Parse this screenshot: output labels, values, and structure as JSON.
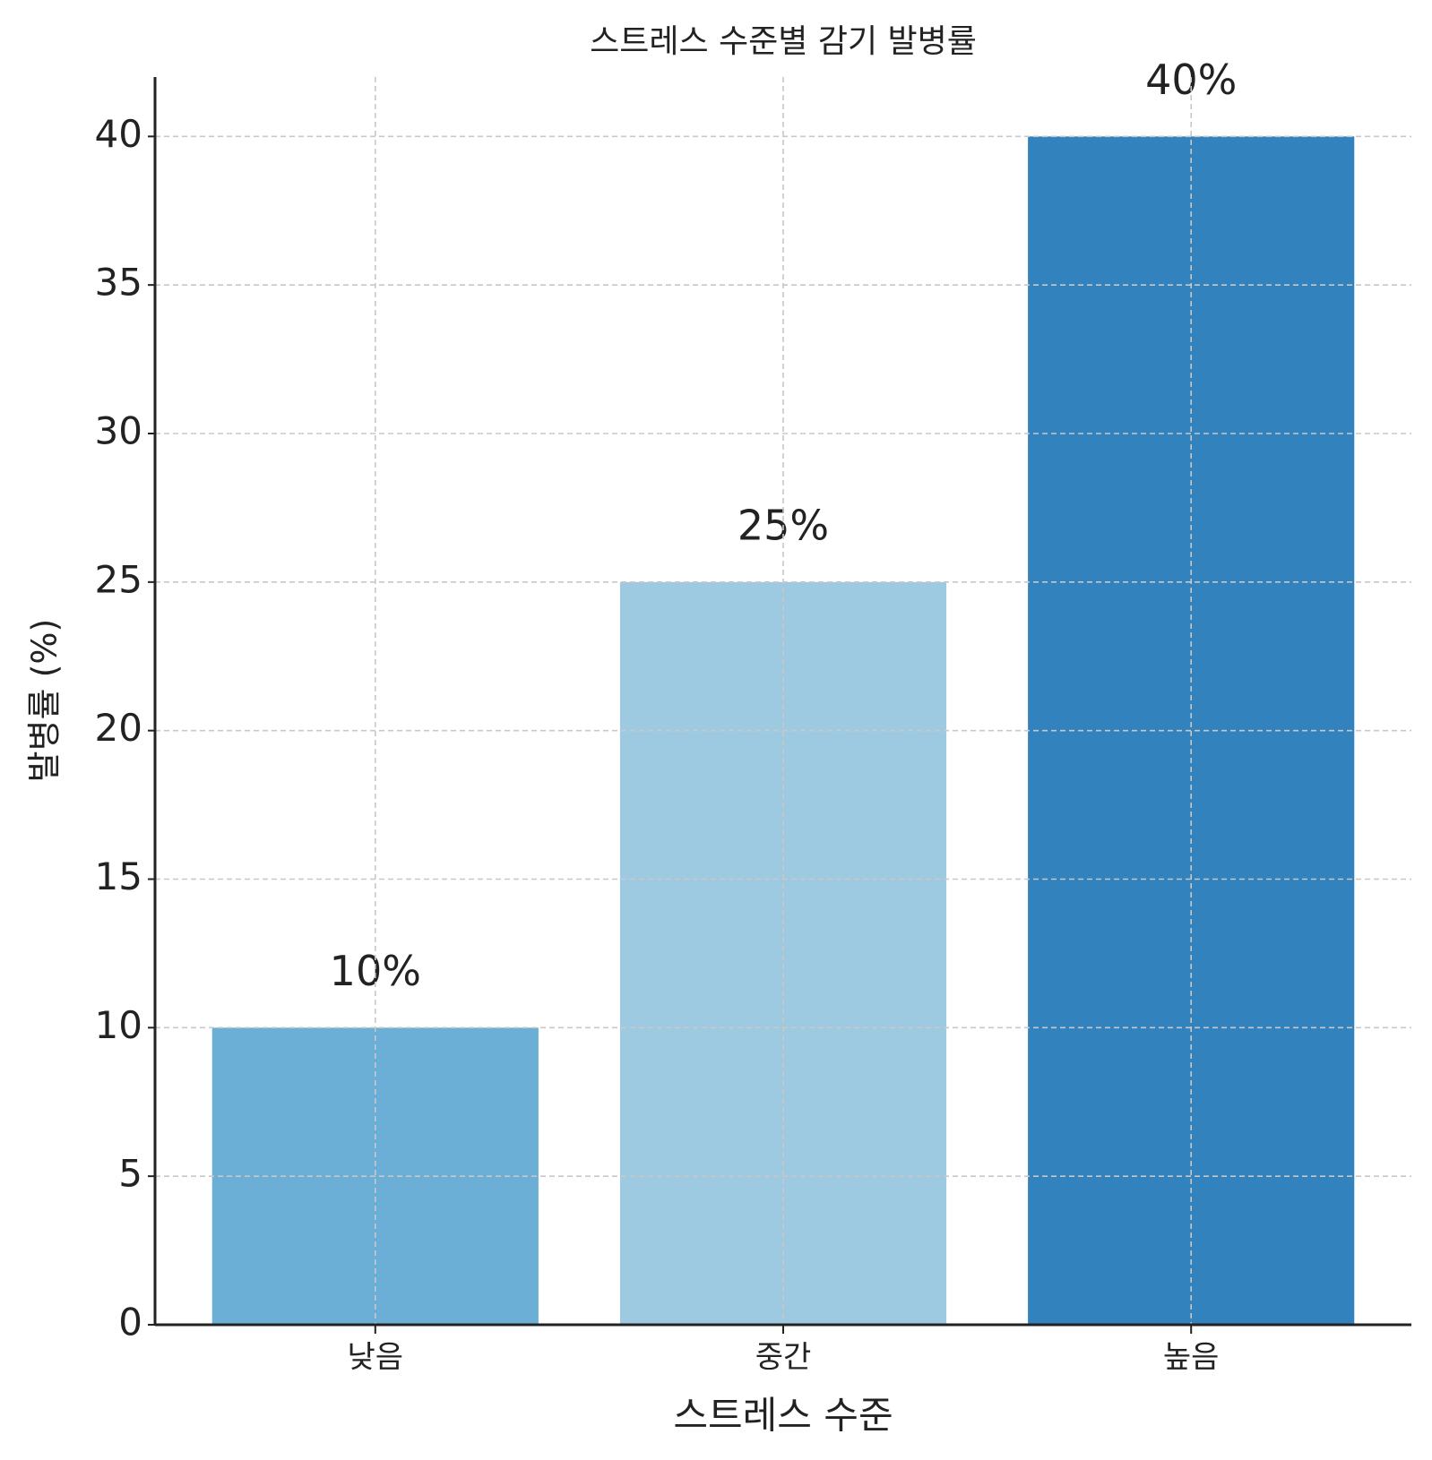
{
  "chart_data": {
    "type": "bar",
    "title": "스트레스 수준별 감기 발병률",
    "x_label": "스트레스 수준",
    "y_label": "발병률 (%)",
    "categories": [
      "낮음",
      "중간",
      "높음"
    ],
    "values": [
      10,
      25,
      40
    ],
    "value_labels": [
      "10%",
      "25%",
      "40%"
    ],
    "colors": [
      "#6baed6",
      "#9ecae1",
      "#3182bd"
    ],
    "ylim": [
      0,
      42
    ],
    "yticks": [
      0,
      5,
      10,
      15,
      20,
      25,
      30,
      35,
      40
    ],
    "grid": true
  }
}
